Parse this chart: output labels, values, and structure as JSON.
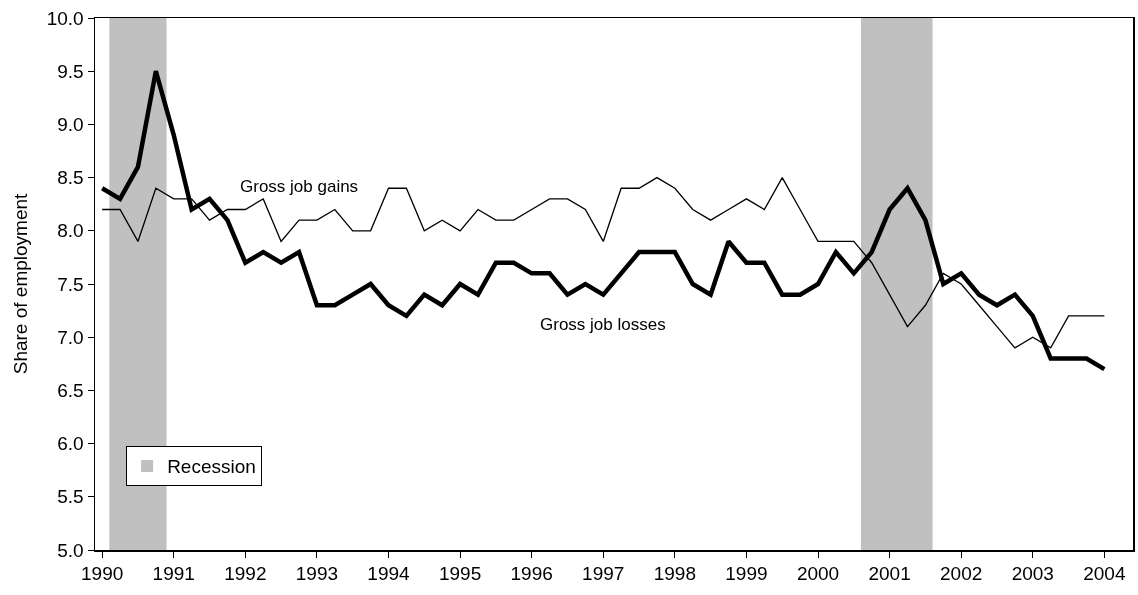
{
  "chart_data": {
    "type": "line",
    "ylabel": "Share of employment",
    "x": [
      1990,
      1990.25,
      1990.5,
      1990.75,
      1991,
      1991.25,
      1991.5,
      1991.75,
      1992,
      1992.25,
      1992.5,
      1992.75,
      1993,
      1993.25,
      1993.5,
      1993.75,
      1994,
      1994.25,
      1994.5,
      1994.75,
      1995,
      1995.25,
      1995.5,
      1995.75,
      1996,
      1996.25,
      1996.5,
      1996.75,
      1997,
      1997.25,
      1997.5,
      1997.75,
      1998,
      1998.25,
      1998.5,
      1998.75,
      1999,
      1999.25,
      1999.5,
      1999.75,
      2000,
      2000.25,
      2000.5,
      2000.75,
      2001,
      2001.25,
      2001.5,
      2001.75,
      2002,
      2002.25,
      2002.5,
      2002.75,
      2003,
      2003.25,
      2003.5,
      2003.75,
      2004
    ],
    "series": [
      {
        "name": "Gross job gains",
        "color": "#000000",
        "values": [
          8.2,
          8.2,
          7.9,
          8.4,
          8.3,
          8.3,
          8.1,
          8.2,
          8.2,
          8.3,
          7.9,
          8.1,
          8.1,
          8.2,
          8.0,
          8.0,
          8.4,
          8.4,
          8.0,
          8.1,
          8.0,
          8.2,
          8.1,
          8.1,
          8.2,
          8.3,
          8.3,
          8.2,
          7.9,
          8.4,
          8.4,
          8.5,
          8.4,
          8.2,
          8.1,
          8.2,
          8.3,
          8.2,
          8.5,
          8.2,
          7.9,
          7.9,
          7.9,
          7.7,
          7.4,
          7.1,
          7.3,
          7.6,
          7.5,
          7.3,
          7.1,
          6.9,
          7.0,
          6.9,
          7.2,
          7.2,
          7.2
        ]
      },
      {
        "name": "Gross job losses",
        "color": "#000000",
        "values": [
          8.4,
          8.3,
          8.6,
          9.5,
          8.9,
          8.2,
          8.3,
          8.1,
          7.7,
          7.8,
          7.7,
          7.8,
          7.3,
          7.3,
          7.4,
          7.5,
          7.3,
          7.2,
          7.4,
          7.3,
          7.5,
          7.4,
          7.7,
          7.7,
          7.6,
          7.6,
          7.4,
          7.5,
          7.4,
          7.6,
          7.8,
          7.8,
          7.8,
          7.5,
          7.4,
          7.9,
          7.7,
          7.7,
          7.4,
          7.4,
          7.5,
          7.8,
          7.6,
          7.8,
          8.2,
          8.4,
          8.1,
          7.5,
          7.6,
          7.4,
          7.3,
          7.4,
          7.2,
          6.8,
          6.8,
          6.8,
          6.7
        ]
      }
    ],
    "xlim": [
      1989.9,
      2004.4
    ],
    "xticks": [
      1990,
      1991,
      1992,
      1993,
      1994,
      1995,
      1996,
      1997,
      1998,
      1999,
      2000,
      2001,
      2002,
      2003,
      2004
    ],
    "ylim": [
      5,
      10
    ],
    "yticks": [
      {
        "value": 5,
        "label": "5.0"
      },
      {
        "value": 5.5,
        "label": "5.5"
      },
      {
        "value": 6,
        "label": "6.0"
      },
      {
        "value": 6.5,
        "label": "6.5"
      },
      {
        "value": 7,
        "label": "7.0"
      },
      {
        "value": 7.5,
        "label": "7.5"
      },
      {
        "value": 8,
        "label": "8.0"
      },
      {
        "value": 8.5,
        "label": "8.5"
      },
      {
        "value": 9,
        "label": "9.0"
      },
      {
        "value": 9.5,
        "label": "9.5"
      },
      {
        "value": 10,
        "label": "10.0"
      }
    ],
    "bands": [
      {
        "axis": "x",
        "from": 1990.1,
        "to": 1990.9,
        "label": "Recession",
        "color": "#c0c0c0"
      },
      {
        "axis": "x",
        "from": 2000.6,
        "to": 2001.6,
        "color": "#c0c0c0"
      }
    ],
    "grid": false,
    "legend": "bottom left",
    "marker": "none",
    "line_style": "solid"
  }
}
